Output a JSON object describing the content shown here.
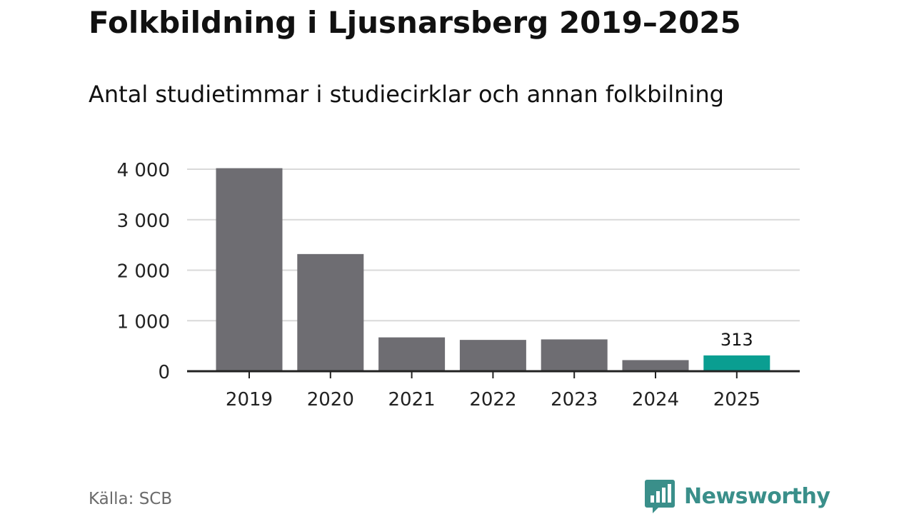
{
  "header": {
    "title": "Folkbildning i Ljusnarsberg 2019–2025",
    "subtitle": "Antal studietimmar i studiecirklar och annan folkbilning"
  },
  "footer": {
    "source": "Källa: SCB",
    "brand": "Newsworthy"
  },
  "colors": {
    "bar": "#6e6d72",
    "highlight": "#0a9e91",
    "grid": "#d9d9d9",
    "axis": "#222222",
    "brand": "#3a8f8a"
  },
  "icons": {
    "brand_logo": "bar-chart-speech-bubble-icon"
  },
  "chart_data": {
    "type": "bar",
    "categories": [
      "2019",
      "2020",
      "2021",
      "2022",
      "2023",
      "2024",
      "2025"
    ],
    "values": [
      4020,
      2320,
      670,
      620,
      630,
      220,
      313
    ],
    "highlight_index": 6,
    "data_labels": [
      {
        "index": 6,
        "text": "313"
      }
    ],
    "yticks": [
      0,
      1000,
      2000,
      3000,
      4000
    ],
    "ytick_labels": [
      "0",
      "1 000",
      "2 000",
      "3 000",
      "4 000"
    ],
    "ylim": [
      0,
      4000
    ],
    "grid": true,
    "legend": "none"
  }
}
